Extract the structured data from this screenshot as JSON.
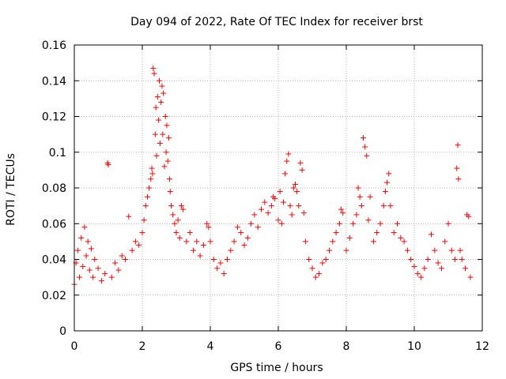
{
  "chart_data": {
    "type": "scatter",
    "title": "Day 094 of 2022, Rate Of TEC Index for receiver brst",
    "xlabel": "GPS time / hours",
    "ylabel": "ROTI / TECUs",
    "xlim": [
      0,
      12
    ],
    "ylim": [
      0,
      0.16
    ],
    "x_ticks": [
      0,
      2,
      4,
      6,
      8,
      10,
      12
    ],
    "y_ticks": [
      0,
      0.02,
      0.04,
      0.06,
      0.08,
      0.1,
      0.12,
      0.14,
      0.16
    ],
    "x_tick_labels": [
      "0",
      "2",
      "4",
      "6",
      "8",
      "10",
      "12"
    ],
    "y_tick_labels": [
      "0",
      "0.02",
      "0.04",
      "0.06",
      "0.08",
      "0.1",
      "0.12",
      "0.14",
      "0.16"
    ],
    "grid": true,
    "marker": "+",
    "color": "#ff0000",
    "series": [
      {
        "points": [
          [
            0.0,
            0.026
          ],
          [
            0.05,
            0.038
          ],
          [
            0.1,
            0.045
          ],
          [
            0.15,
            0.03
          ],
          [
            0.2,
            0.052
          ],
          [
            0.25,
            0.036
          ],
          [
            0.3,
            0.058
          ],
          [
            0.35,
            0.042
          ],
          [
            0.4,
            0.05
          ],
          [
            0.45,
            0.034
          ],
          [
            0.5,
            0.046
          ],
          [
            0.55,
            0.03
          ],
          [
            0.6,
            0.04
          ],
          [
            0.7,
            0.035
          ],
          [
            0.8,
            0.028
          ],
          [
            0.9,
            0.032
          ],
          [
            0.98,
            0.094
          ],
          [
            1.0,
            0.093
          ],
          [
            1.1,
            0.03
          ],
          [
            1.2,
            0.038
          ],
          [
            1.3,
            0.034
          ],
          [
            1.4,
            0.042
          ],
          [
            1.5,
            0.04
          ],
          [
            1.6,
            0.064
          ],
          [
            1.7,
            0.045
          ],
          [
            1.8,
            0.05
          ],
          [
            1.9,
            0.048
          ],
          [
            2.0,
            0.055
          ],
          [
            2.05,
            0.062
          ],
          [
            2.1,
            0.07
          ],
          [
            2.15,
            0.075
          ],
          [
            2.2,
            0.08
          ],
          [
            2.25,
            0.085
          ],
          [
            2.28,
            0.091
          ],
          [
            2.3,
            0.088
          ],
          [
            2.32,
            0.147
          ],
          [
            2.35,
            0.144
          ],
          [
            2.38,
            0.11
          ],
          [
            2.4,
            0.125
          ],
          [
            2.42,
            0.098
          ],
          [
            2.45,
            0.131
          ],
          [
            2.48,
            0.118
          ],
          [
            2.5,
            0.14
          ],
          [
            2.52,
            0.105
          ],
          [
            2.55,
            0.128
          ],
          [
            2.58,
            0.137
          ],
          [
            2.6,
            0.11
          ],
          [
            2.62,
            0.133
          ],
          [
            2.65,
            0.092
          ],
          [
            2.68,
            0.12
          ],
          [
            2.7,
            0.1
          ],
          [
            2.72,
            0.115
          ],
          [
            2.75,
            0.095
          ],
          [
            2.78,
            0.108
          ],
          [
            2.8,
            0.085
          ],
          [
            2.82,
            0.078
          ],
          [
            2.85,
            0.07
          ],
          [
            2.9,
            0.065
          ],
          [
            2.95,
            0.06
          ],
          [
            3.0,
            0.055
          ],
          [
            3.05,
            0.062
          ],
          [
            3.1,
            0.052
          ],
          [
            3.15,
            0.07
          ],
          [
            3.2,
            0.068
          ],
          [
            3.3,
            0.05
          ],
          [
            3.4,
            0.055
          ],
          [
            3.5,
            0.045
          ],
          [
            3.6,
            0.05
          ],
          [
            3.7,
            0.042
          ],
          [
            3.8,
            0.048
          ],
          [
            3.9,
            0.06
          ],
          [
            3.95,
            0.058
          ],
          [
            4.0,
            0.05
          ],
          [
            4.1,
            0.04
          ],
          [
            4.2,
            0.035
          ],
          [
            4.3,
            0.038
          ],
          [
            4.4,
            0.032
          ],
          [
            4.5,
            0.04
          ],
          [
            4.6,
            0.045
          ],
          [
            4.7,
            0.05
          ],
          [
            4.8,
            0.058
          ],
          [
            4.9,
            0.055
          ],
          [
            5.0,
            0.048
          ],
          [
            5.1,
            0.052
          ],
          [
            5.2,
            0.06
          ],
          [
            5.3,
            0.065
          ],
          [
            5.4,
            0.058
          ],
          [
            5.5,
            0.068
          ],
          [
            5.6,
            0.072
          ],
          [
            5.7,
            0.066
          ],
          [
            5.8,
            0.07
          ],
          [
            5.85,
            0.075
          ],
          [
            5.9,
            0.074
          ],
          [
            6.0,
            0.062
          ],
          [
            6.05,
            0.078
          ],
          [
            6.1,
            0.06
          ],
          [
            6.15,
            0.072
          ],
          [
            6.2,
            0.088
          ],
          [
            6.25,
            0.095
          ],
          [
            6.3,
            0.099
          ],
          [
            6.35,
            0.07
          ],
          [
            6.4,
            0.065
          ],
          [
            6.45,
            0.08
          ],
          [
            6.5,
            0.082
          ],
          [
            6.55,
            0.078
          ],
          [
            6.6,
            0.07
          ],
          [
            6.65,
            0.094
          ],
          [
            6.7,
            0.09
          ],
          [
            6.75,
            0.066
          ],
          [
            6.8,
            0.05
          ],
          [
            6.9,
            0.04
          ],
          [
            7.0,
            0.035
          ],
          [
            7.1,
            0.03
          ],
          [
            7.2,
            0.032
          ],
          [
            7.3,
            0.038
          ],
          [
            7.4,
            0.04
          ],
          [
            7.5,
            0.045
          ],
          [
            7.6,
            0.05
          ],
          [
            7.7,
            0.055
          ],
          [
            7.8,
            0.06
          ],
          [
            7.85,
            0.068
          ],
          [
            7.9,
            0.066
          ],
          [
            8.0,
            0.045
          ],
          [
            8.1,
            0.052
          ],
          [
            8.2,
            0.06
          ],
          [
            8.3,
            0.065
          ],
          [
            8.35,
            0.08
          ],
          [
            8.4,
            0.075
          ],
          [
            8.45,
            0.07
          ],
          [
            8.5,
            0.108
          ],
          [
            8.55,
            0.103
          ],
          [
            8.6,
            0.098
          ],
          [
            8.65,
            0.062
          ],
          [
            8.7,
            0.075
          ],
          [
            8.8,
            0.05
          ],
          [
            8.9,
            0.055
          ],
          [
            9.0,
            0.06
          ],
          [
            9.1,
            0.07
          ],
          [
            9.15,
            0.078
          ],
          [
            9.2,
            0.083
          ],
          [
            9.25,
            0.088
          ],
          [
            9.3,
            0.07
          ],
          [
            9.4,
            0.055
          ],
          [
            9.5,
            0.06
          ],
          [
            9.6,
            0.052
          ],
          [
            9.7,
            0.05
          ],
          [
            9.8,
            0.045
          ],
          [
            9.9,
            0.04
          ],
          [
            10.0,
            0.036
          ],
          [
            10.1,
            0.032
          ],
          [
            10.2,
            0.03
          ],
          [
            10.3,
            0.035
          ],
          [
            10.4,
            0.04
          ],
          [
            10.5,
            0.054
          ],
          [
            10.6,
            0.045
          ],
          [
            10.7,
            0.038
          ],
          [
            10.8,
            0.035
          ],
          [
            10.9,
            0.05
          ],
          [
            11.0,
            0.06
          ],
          [
            11.1,
            0.045
          ],
          [
            11.2,
            0.04
          ],
          [
            11.25,
            0.091
          ],
          [
            11.28,
            0.104
          ],
          [
            11.3,
            0.085
          ],
          [
            11.35,
            0.045
          ],
          [
            11.4,
            0.04
          ],
          [
            11.5,
            0.035
          ],
          [
            11.55,
            0.065
          ],
          [
            11.6,
            0.064
          ],
          [
            11.65,
            0.03
          ]
        ]
      }
    ]
  }
}
